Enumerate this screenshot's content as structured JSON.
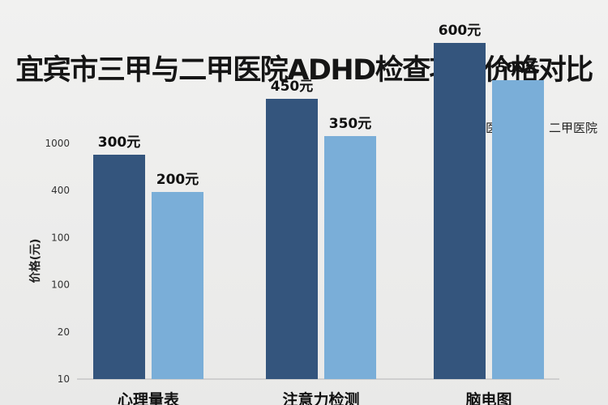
{
  "chart_data": {
    "type": "bar",
    "title": "宜宾市三甲与二甲医院ADHD检查项目价格对比",
    "ylabel": "价格(元)",
    "y_ticks": [
      "1000",
      "400",
      "100",
      "100",
      "20",
      "10"
    ],
    "categories": [
      "心理量表",
      "注意力检测",
      "脑电图"
    ],
    "series": [
      {
        "name": "三甲医院",
        "color": "#34557d",
        "values": [
          300,
          450,
          600
        ],
        "labels": [
          "300元",
          "450元",
          "600元"
        ]
      },
      {
        "name": "二甲医院",
        "color": "#7aaed8",
        "values": [
          200,
          350,
          500
        ],
        "labels": [
          "200元",
          "350元",
          "500元"
        ]
      }
    ],
    "legend_position": "top-right",
    "grid": false
  }
}
